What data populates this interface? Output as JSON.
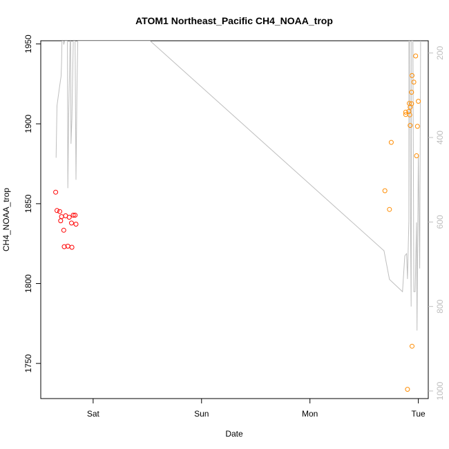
{
  "chart_data": {
    "type": "scatter",
    "title": "ATOM1 Northeast_Pacific CH4_NOAA_trop",
    "xlabel": "Date",
    "ylabel": "CH4_NOAA_trop",
    "x_ticks": [
      "Sat",
      "Sun",
      "Mon",
      "Tue"
    ],
    "x_tick_hours": [
      24,
      48,
      72,
      96
    ],
    "xlim_hours": [
      12.4,
      98.2
    ],
    "ylim": [
      1728,
      1952
    ],
    "y_ticks": [
      1750,
      1800,
      1850,
      1900,
      1950
    ],
    "y2_ticks": [
      200,
      400,
      600,
      800,
      1000
    ],
    "y2lim": [
      1018,
      171
    ],
    "grid": false,
    "legend": "none",
    "colors": {
      "series_red": "#ff0000",
      "series_orange": "#ff8c00",
      "secondary_line": "#bebebe",
      "axis": "#000000",
      "right_axis": "#bebebe"
    },
    "series": [
      {
        "color_key": "series_red",
        "points": [
          [
            15.7,
            1857.2
          ],
          [
            16.0,
            1845.7
          ],
          [
            16.6,
            1845.1
          ],
          [
            16.8,
            1839.3
          ],
          [
            17.0,
            1841.9
          ],
          [
            17.5,
            1833.4
          ],
          [
            17.6,
            1823.1
          ],
          [
            17.9,
            1842.4
          ],
          [
            18.4,
            1823.4
          ],
          [
            18.7,
            1841.5
          ],
          [
            19.2,
            1837.9
          ],
          [
            19.3,
            1822.7
          ],
          [
            19.6,
            1842.8
          ],
          [
            20.0,
            1842.8
          ],
          [
            20.2,
            1837.2
          ]
        ]
      },
      {
        "color_key": "series_orange",
        "points": [
          [
            88.6,
            1858.1
          ],
          [
            89.6,
            1846.4
          ],
          [
            90.0,
            1888.4
          ],
          [
            93.2,
            1907.3
          ],
          [
            93.2,
            1905.8
          ],
          [
            93.6,
            1733.8
          ],
          [
            93.9,
            1907.8
          ],
          [
            94.0,
            1912.8
          ],
          [
            94.1,
            1905.6
          ],
          [
            94.2,
            1899.0
          ],
          [
            94.2,
            1910.4
          ],
          [
            94.5,
            1919.8
          ],
          [
            94.5,
            1912.6
          ],
          [
            94.6,
            1930.2
          ],
          [
            94.6,
            1760.8
          ],
          [
            95.0,
            1926.1
          ],
          [
            95.4,
            1942.5
          ],
          [
            95.6,
            1880.0
          ],
          [
            95.8,
            1898.4
          ],
          [
            96.0,
            1914.1
          ]
        ]
      }
    ],
    "secondary_line": {
      "color_key": "secondary_line",
      "points": [
        [
          15.8,
          448
        ],
        [
          16.0,
          325
        ],
        [
          16.5,
          285
        ],
        [
          16.9,
          255
        ],
        [
          17.0,
          225
        ],
        [
          17.1,
          171
        ],
        [
          17.4,
          171
        ],
        [
          17.5,
          180
        ],
        [
          17.7,
          171
        ],
        [
          18.3,
          171
        ],
        [
          18.4,
          520
        ],
        [
          18.6,
          345
        ],
        [
          18.9,
          171
        ],
        [
          19.0,
          171
        ],
        [
          19.1,
          415
        ],
        [
          19.3,
          355
        ],
        [
          19.6,
          171
        ],
        [
          20.0,
          171
        ],
        [
          20.2,
          500
        ],
        [
          20.4,
          300
        ],
        [
          20.6,
          171
        ],
        [
          36.6,
          171
        ],
        [
          88.4,
          668
        ],
        [
          89.6,
          736
        ],
        [
          92.5,
          765
        ],
        [
          93.0,
          680
        ],
        [
          93.4,
          675
        ],
        [
          93.6,
          735
        ],
        [
          93.9,
          598
        ],
        [
          93.9,
          171
        ],
        [
          94.1,
          171
        ],
        [
          94.3,
          650
        ],
        [
          94.4,
          800
        ],
        [
          94.5,
          171
        ],
        [
          94.8,
          171
        ],
        [
          95.0,
          765
        ],
        [
          95.3,
          765
        ],
        [
          95.6,
          601
        ],
        [
          95.7,
          857
        ],
        [
          96.0,
          440
        ],
        [
          96.3,
          710
        ],
        [
          96.5,
          171
        ]
      ]
    }
  }
}
